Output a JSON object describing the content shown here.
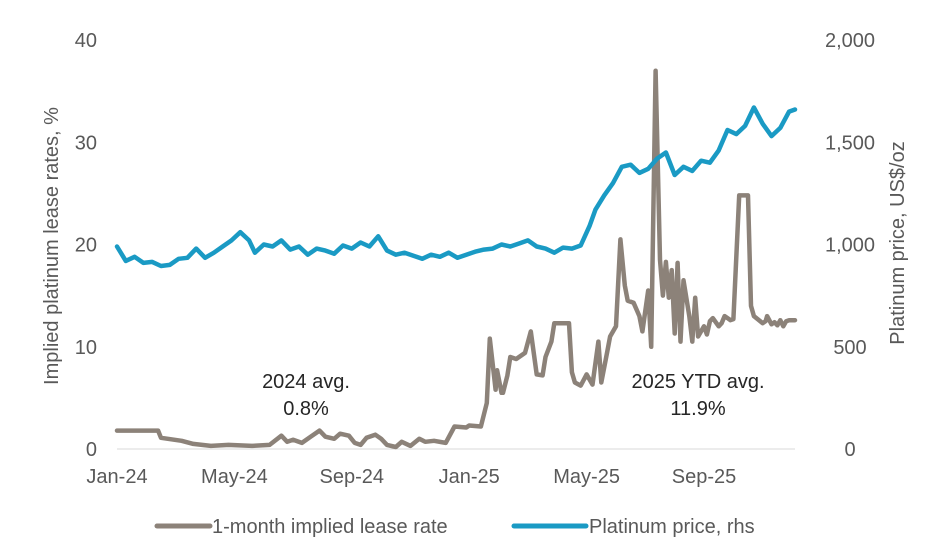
{
  "chart_data": {
    "type": "line",
    "title": "",
    "ylabel_left": "Implied platinum lease rates, %",
    "ylabel_right": "Platinum price, US$/oz",
    "ylim_left": [
      0,
      40
    ],
    "ylim_right": [
      0,
      2000
    ],
    "left_ticks": [
      {
        "value": 0,
        "label": "0"
      },
      {
        "value": 10,
        "label": "10"
      },
      {
        "value": 20,
        "label": "20"
      },
      {
        "value": 30,
        "label": "30"
      },
      {
        "value": 40,
        "label": "40"
      }
    ],
    "right_ticks": [
      {
        "value": 0,
        "label": "0"
      },
      {
        "value": 500,
        "label": "500"
      },
      {
        "value": 1000,
        "label": "1,000"
      },
      {
        "value": 1500,
        "label": "1,500"
      },
      {
        "value": 2000,
        "label": "2,000"
      }
    ],
    "x_range": [
      0,
      23.1
    ],
    "x_ticks": [
      {
        "value": 0,
        "label": "Jan-24"
      },
      {
        "value": 4,
        "label": "May-24"
      },
      {
        "value": 8,
        "label": "Sep-24"
      },
      {
        "value": 12,
        "label": "Jan-25"
      },
      {
        "value": 16,
        "label": "May-25"
      },
      {
        "value": 20,
        "label": "Sep-25"
      }
    ],
    "series": [
      {
        "name": "1-month implied lease rate",
        "axis": "left",
        "color": "#8c8279",
        "x": [
          0,
          1.4,
          1.5,
          2.2,
          2.6,
          3.2,
          3.8,
          4.6,
          5.2,
          5.6,
          5.8,
          6.0,
          6.3,
          6.6,
          6.9,
          7.1,
          7.4,
          7.6,
          7.9,
          8.1,
          8.3,
          8.5,
          8.8,
          9.0,
          9.2,
          9.5,
          9.7,
          10.0,
          10.3,
          10.5,
          10.8,
          11.2,
          11.5,
          11.9,
          12.0,
          12.4,
          12.6,
          12.7,
          12.9,
          12.95,
          13.1,
          13.15,
          13.3,
          13.4,
          13.6,
          13.9,
          14.1,
          14.3,
          14.5,
          14.6,
          14.8,
          14.9,
          15.0,
          15.2,
          15.4,
          15.5,
          15.6,
          15.8,
          16.0,
          16.2,
          16.4,
          16.5,
          16.7,
          16.8,
          17.0,
          17.15,
          17.3,
          17.4,
          17.6,
          17.8,
          17.9,
          18.1,
          18.2,
          18.35,
          18.5,
          18.6,
          18.7,
          18.8,
          18.9,
          19.0,
          19.1,
          19.2,
          19.3,
          19.5,
          19.6,
          19.7,
          19.8,
          20.0,
          20.1,
          20.2,
          20.3,
          20.5,
          20.6,
          20.7,
          20.8,
          20.9,
          21.0,
          21.2,
          21.4,
          21.5,
          21.6,
          21.7,
          22.0,
          22.1,
          22.15,
          22.3,
          22.4,
          22.5,
          22.6,
          22.7,
          22.8,
          22.9,
          23.1
        ],
        "values": [
          1.8,
          1.8,
          1.1,
          0.8,
          0.5,
          0.3,
          0.4,
          0.3,
          0.4,
          1.3,
          0.7,
          0.9,
          0.6,
          1.2,
          1.8,
          1.2,
          1.0,
          1.5,
          1.3,
          0.6,
          0.4,
          1.1,
          1.4,
          1.0,
          0.4,
          0.2,
          0.7,
          0.3,
          1.0,
          0.7,
          0.8,
          0.6,
          2.2,
          2.1,
          2.3,
          2.2,
          4.5,
          10.8,
          5.8,
          7.7,
          5.5,
          5.5,
          7.2,
          9.0,
          8.8,
          9.4,
          11.5,
          7.3,
          7.2,
          9.0,
          10.5,
          12.3,
          12.3,
          12.3,
          12.3,
          7.5,
          6.5,
          6.2,
          7.3,
          6.3,
          10.5,
          6.5,
          9.5,
          11.0,
          12.0,
          20.5,
          16.0,
          14.5,
          14.3,
          13.0,
          11.5,
          15.5,
          10.0,
          37.0,
          18.5,
          15.0,
          18.3,
          14.8,
          17.5,
          11.3,
          18.2,
          10.5,
          16.5,
          13.0,
          10.5,
          14.8,
          11.0,
          12.0,
          11.2,
          12.5,
          12.8,
          12.0,
          12.3,
          13.0,
          12.8,
          12.6,
          12.7,
          24.8,
          24.8,
          24.8,
          14.0,
          13.0,
          12.3,
          12.5,
          13.0,
          12.2,
          12.4,
          12.1,
          12.6,
          12.0,
          12.5,
          12.6,
          12.6
        ],
        "legend": "1-month implied lease rate"
      },
      {
        "name": "Platinum price, rhs",
        "axis": "right",
        "color": "#1a9ac4",
        "x": [
          0,
          0.3,
          0.6,
          0.9,
          1.2,
          1.5,
          1.8,
          2.1,
          2.4,
          2.7,
          3.0,
          3.3,
          3.6,
          3.9,
          4.2,
          4.5,
          4.7,
          5.0,
          5.3,
          5.6,
          5.9,
          6.2,
          6.5,
          6.8,
          7.1,
          7.4,
          7.7,
          8.0,
          8.3,
          8.6,
          8.9,
          9.2,
          9.5,
          9.8,
          10.1,
          10.4,
          10.7,
          11.0,
          11.3,
          11.6,
          11.9,
          12.2,
          12.5,
          12.8,
          13.1,
          13.4,
          13.7,
          14.0,
          14.3,
          14.6,
          14.9,
          15.2,
          15.5,
          15.8,
          16.1,
          16.3,
          16.6,
          16.9,
          17.2,
          17.5,
          17.8,
          18.1,
          18.4,
          18.7,
          19.0,
          19.3,
          19.6,
          19.9,
          20.2,
          20.5,
          20.8,
          21.1,
          21.4,
          21.7,
          22.0,
          22.3,
          22.6,
          22.9,
          23.1
        ],
        "values": [
          990,
          920,
          940,
          910,
          915,
          895,
          900,
          930,
          935,
          980,
          935,
          960,
          990,
          1020,
          1060,
          1020,
          960,
          1000,
          990,
          1020,
          975,
          990,
          950,
          980,
          970,
          955,
          995,
          980,
          1010,
          990,
          1040,
          970,
          950,
          960,
          945,
          930,
          950,
          940,
          960,
          935,
          950,
          965,
          975,
          980,
          1000,
          990,
          1005,
          1020,
          990,
          980,
          960,
          985,
          980,
          995,
          1090,
          1170,
          1240,
          1300,
          1380,
          1390,
          1350,
          1370,
          1420,
          1450,
          1340,
          1380,
          1360,
          1410,
          1400,
          1460,
          1560,
          1540,
          1580,
          1670,
          1590,
          1530,
          1570,
          1650,
          1660
        ],
        "legend": "Platinum price, rhs"
      }
    ],
    "annotations": [
      {
        "line1": "2024 avg.",
        "line2": "0.8%"
      },
      {
        "line1": "2025 YTD avg.",
        "line2": "11.9%"
      }
    ],
    "legend_position": "bottom",
    "grid": false
  }
}
